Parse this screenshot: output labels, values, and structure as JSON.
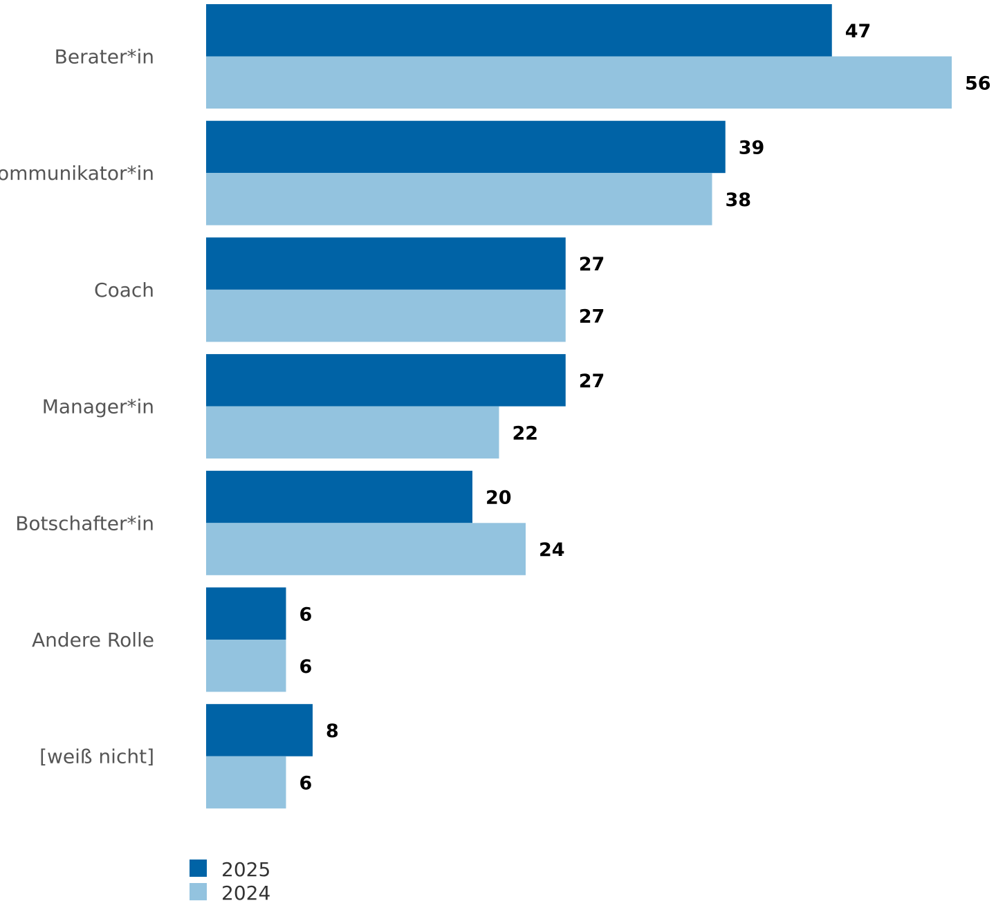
{
  "chart_data": {
    "type": "bar",
    "orientation": "horizontal",
    "categories": [
      "Berater*in",
      "Kommunikator*in",
      "Coach",
      "Manager*in",
      "Botschafter*in",
      "Andere Rolle",
      "[weiß nicht]"
    ],
    "series": [
      {
        "name": "2025",
        "color": "#0063a6",
        "values": [
          47,
          39,
          27,
          27,
          20,
          6,
          8
        ]
      },
      {
        "name": "2024",
        "color": "#93c3df",
        "values": [
          56,
          38,
          27,
          22,
          24,
          6,
          6
        ]
      }
    ],
    "title": "",
    "xlabel": "",
    "ylabel": "",
    "xlim": [
      0,
      56
    ],
    "grid": false,
    "data_labels": true,
    "legend_position": "bottom-left"
  }
}
